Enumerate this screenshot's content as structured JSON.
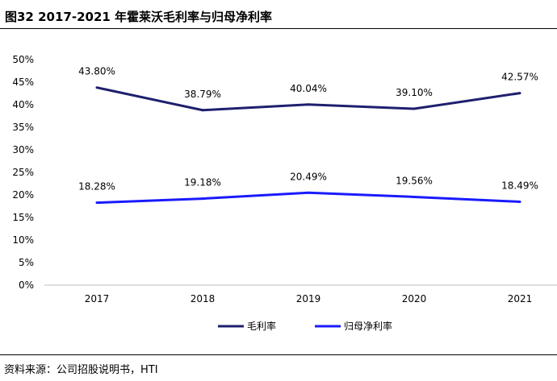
{
  "figure": {
    "title": "图32 2017-2021 年霍莱沃毛利率与归母净利率",
    "source": "资料来源：公司招股说明书，HTI"
  },
  "chart_data": {
    "type": "line",
    "categories": [
      "2017",
      "2018",
      "2019",
      "2020",
      "2021"
    ],
    "series": [
      {
        "name": "毛利率",
        "values": [
          43.8,
          38.79,
          40.04,
          39.1,
          42.57
        ],
        "labels": [
          "43.80%",
          "38.79%",
          "40.04%",
          "39.10%",
          "42.57%"
        ],
        "color": "#1f1f6e"
      },
      {
        "name": "归母净利率",
        "values": [
          18.28,
          19.18,
          20.49,
          19.56,
          18.49
        ],
        "labels": [
          "18.28%",
          "19.18%",
          "20.49%",
          "19.56%",
          "18.49%"
        ],
        "color": "#1a1aff"
      }
    ],
    "ylim": [
      0,
      50
    ],
    "yticks": [
      0,
      5,
      10,
      15,
      20,
      25,
      30,
      35,
      40,
      45,
      50
    ],
    "ytick_labels": [
      "0%",
      "5%",
      "10%",
      "15%",
      "20%",
      "25%",
      "30%",
      "35%",
      "40%",
      "45%",
      "50%"
    ],
    "grid": false,
    "legend_position": "bottom"
  }
}
